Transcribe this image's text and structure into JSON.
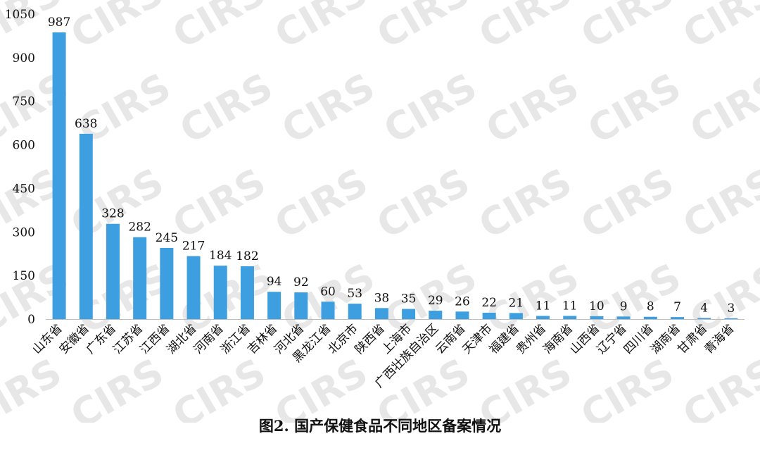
{
  "watermark": "CIRS",
  "chart_data": {
    "type": "bar",
    "title": "图2. 国产保健食品不同地区备案情况",
    "xlabel": "",
    "ylabel": "",
    "ylim": [
      0,
      1050
    ],
    "yticks": [
      0,
      150,
      300,
      450,
      600,
      750,
      900,
      1050
    ],
    "grid": false,
    "legend": "none",
    "bar_color": "#3d9ee0",
    "categories": [
      "山东省",
      "安徽省",
      "广东省",
      "江苏省",
      "江西省",
      "湖北省",
      "河南省",
      "浙江省",
      "吉林省",
      "河北省",
      "黑龙江省",
      "北京市",
      "陕西省",
      "上海市",
      "广西壮族自治区",
      "云南省",
      "天津市",
      "福建省",
      "贵州省",
      "海南省",
      "山西省",
      "辽宁省",
      "四川省",
      "湖南省",
      "甘肃省",
      "青海省"
    ],
    "values": [
      987,
      638,
      328,
      282,
      245,
      217,
      184,
      182,
      94,
      92,
      60,
      53,
      38,
      35,
      29,
      26,
      22,
      21,
      11,
      11,
      10,
      9,
      8,
      7,
      4,
      3
    ]
  }
}
